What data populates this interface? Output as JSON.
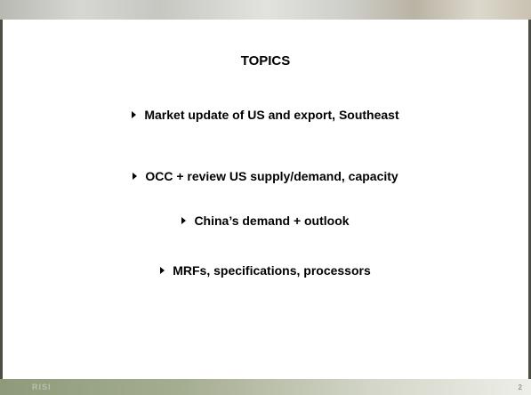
{
  "slide": {
    "title": "TOPICS",
    "items": [
      "Market update of US and export, Southeast",
      "OCC + review US supply/demand, capacity",
      "China’s demand + outlook",
      "MRFs, specifications, processors"
    ],
    "footer_logo": "RISI",
    "page_number": "2"
  }
}
